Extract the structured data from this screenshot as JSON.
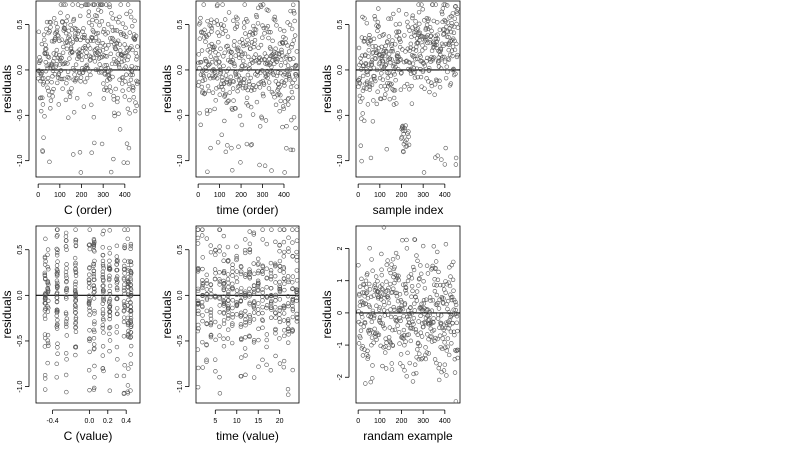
{
  "colors": {
    "points": "#555555",
    "frame": "#000000",
    "background": "#ffffff"
  },
  "chart_data": [
    {
      "type": "scatter",
      "point_style": "open-circle",
      "reference_line_y": 0,
      "xlabel": "C (order)",
      "ylabel": "residuals",
      "xlim": [
        -10,
        470
      ],
      "ylim": [
        -1.18,
        0.76
      ],
      "xticks": [
        0,
        100,
        200,
        300,
        400
      ],
      "xtick_labels": [
        "0",
        "100",
        "200",
        "300",
        "400"
      ],
      "yticks": [
        -1.0,
        -0.5,
        0.0,
        0.5
      ],
      "ytick_labels": [
        "-1.0",
        "-0.5",
        "0.0",
        "0.5"
      ],
      "summary": {
        "n_points": 460,
        "x_range": [
          1,
          460
        ],
        "y_range": [
          -1.13,
          0.68
        ],
        "trend": "residuals centered near zero, rising from about 0.0 to 0.3 toward index 250, wide spread below zero"
      }
    },
    {
      "type": "scatter",
      "point_style": "open-circle",
      "reference_line_y": 0,
      "xlabel": "time (order)",
      "ylabel": "residuals",
      "xlim": [
        -10,
        470
      ],
      "ylim": [
        -1.18,
        0.76
      ],
      "xticks": [
        0,
        100,
        200,
        300,
        400
      ],
      "xtick_labels": [
        "0",
        "100",
        "200",
        "300",
        "400"
      ],
      "yticks": [
        -1.0,
        -0.5,
        0.0,
        0.5
      ],
      "ytick_labels": [
        "-1.0",
        "-0.5",
        "0.0",
        "0.5"
      ],
      "summary": {
        "n_points": 460,
        "x_range": [
          1,
          460
        ],
        "y_range": [
          -1.13,
          0.68
        ],
        "trend": "no clear trend, symmetric spread around zero with a few low outliers"
      }
    },
    {
      "type": "scatter",
      "point_style": "open-circle",
      "reference_line_y": 0,
      "xlabel": "sample index",
      "ylabel": "residuals",
      "xlim": [
        -10,
        470
      ],
      "ylim": [
        -1.18,
        0.76
      ],
      "xticks": [
        0,
        100,
        200,
        300,
        400
      ],
      "xtick_labels": [
        "0",
        "100",
        "200",
        "300",
        "400"
      ],
      "yticks": [
        -1.0,
        -0.5,
        0.0,
        0.5
      ],
      "ytick_labels": [
        "-1.0",
        "-0.5",
        "0.0",
        "0.5"
      ],
      "summary": {
        "n_points": 460,
        "x_range": [
          1,
          460
        ],
        "y_range": [
          -1.13,
          0.68
        ],
        "trend": "mostly positive residuals, upward drift from about 0.0 to 0.4, dip near index 200-230"
      }
    },
    {
      "type": "scatter",
      "point_style": "open-circle",
      "reference_line_y": 0,
      "xlabel": "C (value)",
      "ylabel": "residuals",
      "xlim": [
        -0.58,
        0.55
      ],
      "ylim": [
        -1.18,
        0.76
      ],
      "xticks": [
        -0.4,
        0.0,
        0.2,
        0.4
      ],
      "xtick_labels": [
        "-0.4",
        "0.0",
        "0.2",
        "0.4"
      ],
      "yticks": [
        -1.0,
        -0.5,
        0.0,
        0.5
      ],
      "ytick_labels": [
        "-1.0",
        "-0.5",
        "0.0",
        "0.5"
      ],
      "summary": {
        "n_points": 460,
        "x_values": [
          -0.48,
          -0.45,
          -0.35,
          -0.25,
          -0.15,
          0.0,
          0.05,
          0.15,
          0.22,
          0.3,
          0.38,
          0.42,
          0.45
        ],
        "y_range": [
          -1.13,
          0.68
        ],
        "trend": "vertical bands at discrete C values, largest spread at -0.48 and 0.45"
      }
    },
    {
      "type": "scatter",
      "point_style": "open-circle",
      "reference_line_y": 0,
      "xlabel": "time (value)",
      "ylabel": "residuals",
      "xlim": [
        0.5,
        24.5
      ],
      "ylim": [
        -1.18,
        0.76
      ],
      "xticks": [
        5,
        10,
        15,
        20
      ],
      "xtick_labels": [
        "5",
        "10",
        "15",
        "20"
      ],
      "yticks": [
        -1.0,
        -0.5,
        0.0,
        0.5
      ],
      "ytick_labels": [
        "-1.0",
        "-0.5",
        "0.0",
        "0.5"
      ],
      "summary": {
        "n_points": 460,
        "x_values": [
          1,
          2,
          3,
          4,
          5,
          6,
          7,
          8,
          9,
          10,
          11,
          12,
          13,
          14,
          15,
          16,
          17,
          18,
          19,
          20,
          21,
          22,
          23,
          24
        ],
        "y_range": [
          -1.13,
          0.68
        ],
        "trend": "vertical bands at integer times, dense columns near 8, 12 and 24"
      }
    },
    {
      "type": "scatter",
      "point_style": "open-circle",
      "reference_line_y": 0,
      "xlabel": "randam example",
      "ylabel": "residuals",
      "xlim": [
        -10,
        470
      ],
      "ylim": [
        -2.8,
        2.7
      ],
      "xticks": [
        0,
        100,
        200,
        300,
        400
      ],
      "xtick_labels": [
        "0",
        "100",
        "200",
        "300",
        "400"
      ],
      "yticks": [
        -2,
        -1,
        0,
        1,
        2
      ],
      "ytick_labels": [
        "-2",
        "-1",
        "0",
        "1",
        "2"
      ],
      "summary": {
        "n_points": 460,
        "x_range": [
          1,
          460
        ],
        "y_range": [
          -2.6,
          2.5
        ],
        "trend": "random normal noise centered at zero"
      }
    }
  ]
}
